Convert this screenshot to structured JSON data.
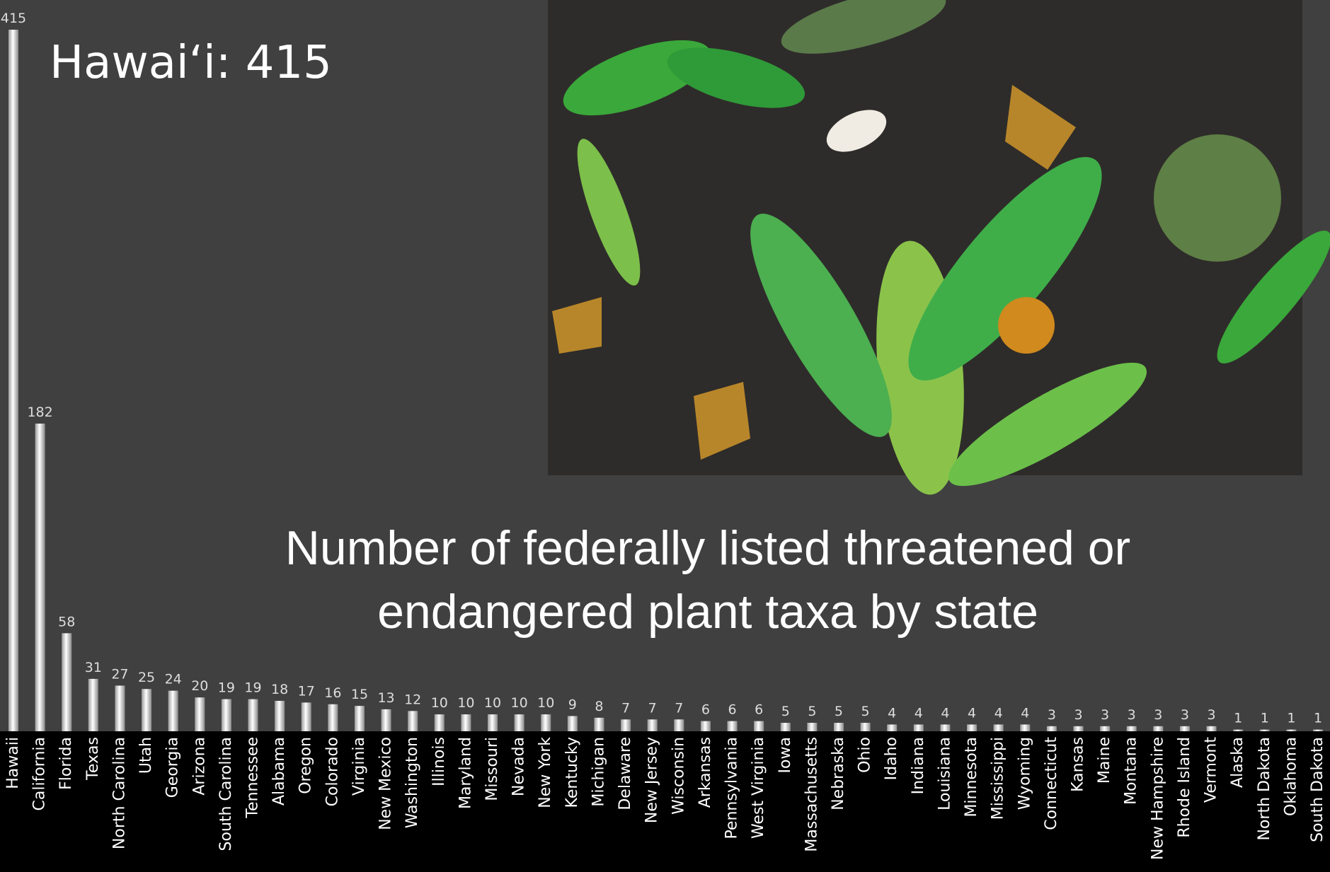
{
  "chart_data": {
    "type": "bar",
    "title": "Number of federally listed threatened or endangered plant taxa by state",
    "annotation": "Hawaiʻi: 415",
    "categories": [
      "Hawaii",
      "California",
      "Florida",
      "Texas",
      "North Carolina",
      "Utah",
      "Georgia",
      "Arizona",
      "South Carolina",
      "Tennessee",
      "Alabama",
      "Oregon",
      "Colorado",
      "Virginia",
      "New Mexico",
      "Washington",
      "Illinois",
      "Maryland",
      "Missouri",
      "Nevada",
      "New York",
      "Kentucky",
      "Michigan",
      "Delaware",
      "New Jersey",
      "Wisconsin",
      "Arkansas",
      "Pennsylvania",
      "West Virginia",
      "Iowa",
      "Massachusetts",
      "Nebraska",
      "Ohio",
      "Idaho",
      "Indiana",
      "Louisiana",
      "Minnesota",
      "Mississippi",
      "Wyoming",
      "Connecticut",
      "Kansas",
      "Maine",
      "Montana",
      "New Hampshire",
      "Rhode Island",
      "Vermont",
      "Alaska",
      "North Dakota",
      "Oklahoma",
      "South Dakota"
    ],
    "values": [
      415,
      182,
      58,
      31,
      27,
      25,
      24,
      20,
      19,
      19,
      18,
      17,
      16,
      15,
      13,
      12,
      10,
      10,
      10,
      10,
      10,
      9,
      8,
      7,
      7,
      7,
      6,
      6,
      6,
      5,
      5,
      5,
      5,
      4,
      4,
      4,
      4,
      4,
      4,
      3,
      3,
      3,
      3,
      3,
      3,
      3,
      1,
      1,
      1,
      1
    ],
    "color": "#ffffff"
  }
}
